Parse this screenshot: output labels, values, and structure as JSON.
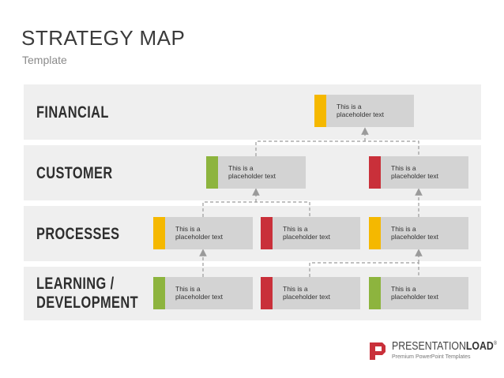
{
  "header": {
    "title": "STRATEGY MAP",
    "subtitle": "Template"
  },
  "rows": [
    {
      "label": "FINANCIAL"
    },
    {
      "label": "CUSTOMER"
    },
    {
      "label": "PROCESSES"
    },
    {
      "label": "LEARNING /\nDEVELOPMENT"
    }
  ],
  "colors": {
    "yellow": "#f5b800",
    "green": "#8db43e",
    "red": "#c9303a",
    "box": "#d3d3d3",
    "band": "#efefef",
    "connector": "#9a9a9a"
  },
  "boxes": {
    "financial_1": {
      "text": "This is a\nplaceholder text",
      "color": "yellow"
    },
    "customer_1": {
      "text": "This is a\nplaceholder text",
      "color": "green"
    },
    "customer_2": {
      "text": "This is a\nplaceholder text",
      "color": "red"
    },
    "processes_1": {
      "text": "This is a\nplaceholder text",
      "color": "yellow"
    },
    "processes_2": {
      "text": "This is a\nplaceholder text",
      "color": "red"
    },
    "processes_3": {
      "text": "This is a\nplaceholder text",
      "color": "yellow"
    },
    "learning_1": {
      "text": "This is a\nplaceholder text",
      "color": "green"
    },
    "learning_2": {
      "text": "This is a\nplaceholder text",
      "color": "red"
    },
    "learning_3": {
      "text": "This is a\nplaceholder text",
      "color": "green"
    }
  },
  "logo": {
    "name_light": "PRESENTATION",
    "name_bold": "LOAD",
    "mark": "®",
    "tagline": "Premium PowerPoint Templates"
  }
}
